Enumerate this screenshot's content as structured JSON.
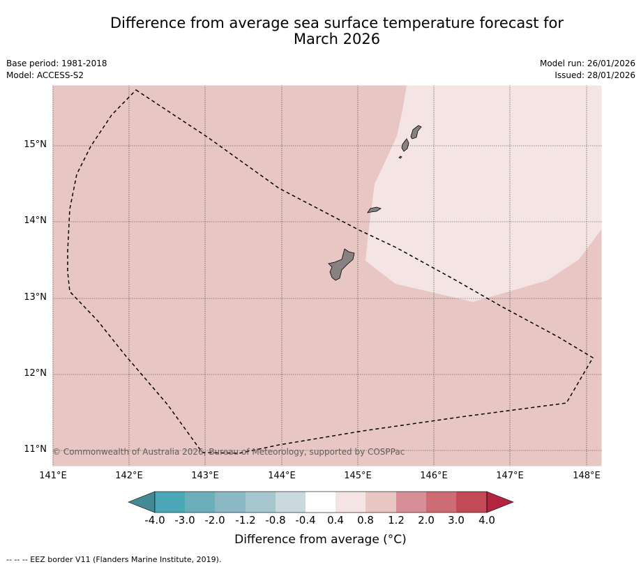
{
  "header": {
    "title_line1": "Difference from average sea surface temperature forecast for",
    "title_line2": "March 2026",
    "base_period": "Base period: 1981-2018",
    "model": "Model: ACCESS-S2",
    "model_run": "Model run: 26/01/2026",
    "issued": "Issued: 28/01/2026"
  },
  "map": {
    "latitude_labels": [
      "15°N",
      "14°N",
      "13°N",
      "12°N",
      "11°N"
    ],
    "longitude_labels": [
      "141°E",
      "142°E",
      "143°E",
      "144°E",
      "145°E",
      "146°E",
      "147°E",
      "148°E"
    ],
    "copyright": "© Commonwealth of Australia 2026, Bureau of Meteorology, supported by COSPPac",
    "colors": {
      "anomaly_0_4_to_0_8": "#f4e5e4",
      "anomaly_0_8_to_1_2": "#e7c6c3",
      "land": "#878181",
      "eez_border": "#000000"
    }
  },
  "colorbar": {
    "labels": [
      "-4.0",
      "-3.0",
      "-2.0",
      "-1.2",
      "-0.8",
      "-0.4",
      "0.4",
      "0.8",
      "1.2",
      "2.0",
      "3.0",
      "4.0"
    ],
    "colors": [
      "#438a95",
      "#4aa7b5",
      "#6daebb",
      "#8ab8c4",
      "#a6c7cd",
      "#cad9dd",
      "#ffffff",
      "#f4e5e4",
      "#e7c6c3",
      "#d98f97",
      "#cd6c74",
      "#c24a57",
      "#b22440"
    ],
    "title": "Difference from average (°C)"
  },
  "legend": {
    "eez_note": "--  --  -- EEZ border V11 (Flanders Marine Institute, 2019)."
  }
}
